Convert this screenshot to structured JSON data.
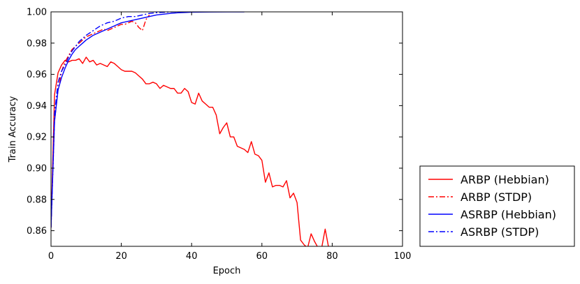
{
  "chart_data": {
    "type": "line",
    "xlabel": "Epoch",
    "ylabel": "Train Accuracy",
    "xlim": [
      0,
      100
    ],
    "ylim": [
      0.85,
      1.0
    ],
    "xticks": [
      0,
      20,
      40,
      60,
      80,
      100
    ],
    "yticks": [
      0.86,
      0.88,
      0.9,
      0.92,
      0.94,
      0.96,
      0.98,
      1.0
    ],
    "xtick_labels": [
      "0",
      "20",
      "40",
      "60",
      "80",
      "100"
    ],
    "ytick_labels": [
      "0.86",
      "0.88",
      "0.90",
      "0.92",
      "0.94",
      "0.96",
      "0.98",
      "1.00"
    ],
    "grid": false,
    "legend_position": "outside-right-bottom",
    "series": [
      {
        "name": "ARBP (Hebbian)",
        "color": "#ff0000",
        "dash": "solid",
        "x": [
          0,
          1,
          2,
          3,
          4,
          5,
          6,
          7,
          8,
          9,
          10,
          11,
          12,
          13,
          14,
          15,
          16,
          17,
          18,
          19,
          20,
          21,
          22,
          23,
          24,
          25,
          26,
          27,
          28,
          29,
          30,
          31,
          32,
          33,
          34,
          35,
          36,
          37,
          38,
          39,
          40,
          41,
          42,
          43,
          44,
          45,
          46,
          47,
          48,
          49,
          50,
          51,
          52,
          53,
          54,
          55,
          56,
          57,
          58,
          59,
          60,
          61,
          62,
          63,
          64,
          65,
          66,
          67,
          68,
          69,
          70,
          71,
          72,
          73,
          74,
          75,
          76,
          77,
          78,
          79
        ],
        "y": [
          0.862,
          0.947,
          0.961,
          0.966,
          0.969,
          0.968,
          0.969,
          0.969,
          0.97,
          0.967,
          0.971,
          0.968,
          0.969,
          0.966,
          0.967,
          0.966,
          0.965,
          0.968,
          0.967,
          0.965,
          0.963,
          0.962,
          0.962,
          0.962,
          0.961,
          0.959,
          0.957,
          0.954,
          0.954,
          0.955,
          0.954,
          0.951,
          0.953,
          0.952,
          0.951,
          0.951,
          0.948,
          0.948,
          0.951,
          0.949,
          0.942,
          0.941,
          0.948,
          0.943,
          0.941,
          0.939,
          0.939,
          0.934,
          0.922,
          0.926,
          0.929,
          0.92,
          0.92,
          0.914,
          0.913,
          0.912,
          0.91,
          0.917,
          0.909,
          0.908,
          0.905,
          0.891,
          0.897,
          0.888,
          0.889,
          0.889,
          0.888,
          0.892,
          0.881,
          0.884,
          0.878,
          0.854,
          0.851,
          0.849,
          0.858,
          0.853,
          0.849,
          0.849,
          0.861,
          0.849
        ]
      },
      {
        "name": "ARBP (STDP)",
        "color": "#ff0000",
        "dash": "dashdot",
        "x": [
          0,
          1,
          2,
          3,
          4,
          5,
          6,
          7,
          8,
          9,
          10,
          11,
          12,
          13,
          14,
          15,
          16,
          17,
          18,
          19,
          20,
          21,
          22,
          23,
          24,
          25,
          26,
          27,
          28
        ],
        "y": [
          0.862,
          0.93,
          0.95,
          0.962,
          0.968,
          0.972,
          0.976,
          0.978,
          0.98,
          0.982,
          0.984,
          0.985,
          0.986,
          0.987,
          0.988,
          0.989,
          0.988,
          0.989,
          0.99,
          0.991,
          0.992,
          0.992,
          0.993,
          0.994,
          0.993,
          0.99,
          0.988,
          0.995,
          0.998
        ]
      },
      {
        "name": "ASRBP (Hebbian)",
        "color": "#0000ff",
        "dash": "solid",
        "x": [
          0,
          1,
          2,
          3,
          4,
          5,
          6,
          7,
          8,
          9,
          10,
          12,
          14,
          16,
          18,
          20,
          22,
          24,
          26,
          28,
          30,
          32,
          34,
          36,
          38,
          40,
          45,
          50,
          55
        ],
        "y": [
          0.862,
          0.93,
          0.95,
          0.958,
          0.964,
          0.969,
          0.973,
          0.976,
          0.978,
          0.98,
          0.982,
          0.985,
          0.987,
          0.989,
          0.991,
          0.993,
          0.994,
          0.995,
          0.996,
          0.997,
          0.998,
          0.9985,
          0.999,
          0.9994,
          0.9996,
          0.9998,
          0.9999,
          1.0,
          1.0
        ]
      },
      {
        "name": "ASRBP (STDP)",
        "color": "#0000ff",
        "dash": "dashdot",
        "x": [
          0,
          1,
          2,
          3,
          4,
          5,
          6,
          7,
          8,
          9,
          10,
          12,
          14,
          16,
          18,
          20,
          22,
          24,
          26,
          28,
          30,
          35,
          40
        ],
        "y": [
          0.862,
          0.935,
          0.955,
          0.962,
          0.966,
          0.971,
          0.975,
          0.978,
          0.981,
          0.983,
          0.985,
          0.988,
          0.991,
          0.993,
          0.994,
          0.996,
          0.997,
          0.997,
          0.998,
          0.999,
          0.9995,
          1.0,
          1.0
        ]
      }
    ]
  }
}
